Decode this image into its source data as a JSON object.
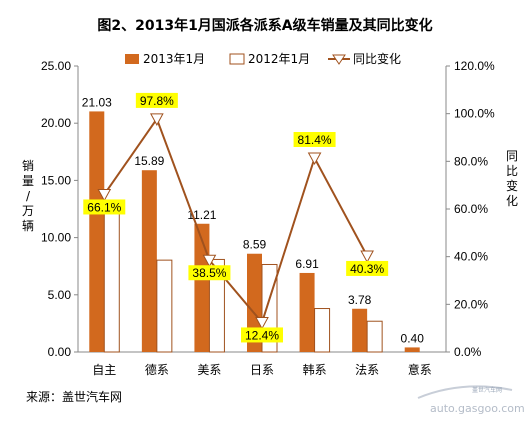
{
  "colors": {
    "bar_2013": "#d2691e",
    "bar_2012": "#ffffff",
    "line": "#a0521e",
    "label_highlight": "#ffff00",
    "grid": "#d0d0d0",
    "watermark": "#8a96a8"
  },
  "chart_data": {
    "type": "bar",
    "title": "图2、2013年1月国派各派系A级车销量及其同比变化",
    "categories": [
      "自主",
      "德系",
      "美系",
      "日系",
      "韩系",
      "法系",
      "意系"
    ],
    "series": [
      {
        "name": "2013年1月",
        "type": "bar",
        "axis": "left",
        "values": [
          21.03,
          15.89,
          11.21,
          8.59,
          6.91,
          3.78,
          0.4
        ],
        "labels": [
          "21.03",
          "15.89",
          "11.21",
          "8.59",
          "6.91",
          "3.78",
          "0.40"
        ]
      },
      {
        "name": "2012年1月",
        "type": "bar",
        "axis": "left",
        "values": [
          12.66,
          8.03,
          8.09,
          7.65,
          3.8,
          2.69,
          null
        ]
      },
      {
        "name": "同比变化",
        "type": "line",
        "axis": "right",
        "values": [
          66.1,
          97.8,
          38.5,
          12.4,
          81.4,
          40.3,
          null
        ],
        "labels": [
          "66.1%",
          "97.8%",
          "38.5%",
          "12.4%",
          "81.4%",
          "40.3%",
          null
        ]
      }
    ],
    "ylabel": "销量/万辆",
    "y2label": "同比变化",
    "ylim": [
      0,
      25
    ],
    "y2lim": [
      0,
      120
    ],
    "yticks": [
      "0.00",
      "5.00",
      "10.00",
      "15.00",
      "20.00",
      "25.00"
    ],
    "y2ticks": [
      "0.0%",
      "20.0%",
      "40.0%",
      "60.0%",
      "80.0%",
      "100.0%",
      "120.0%"
    ],
    "legend": "top",
    "grid": false
  },
  "source": "来源：盖世汽车网",
  "watermark": {
    "top": "盖世汽车网",
    "bottom": "auto.gasgoo.com"
  }
}
